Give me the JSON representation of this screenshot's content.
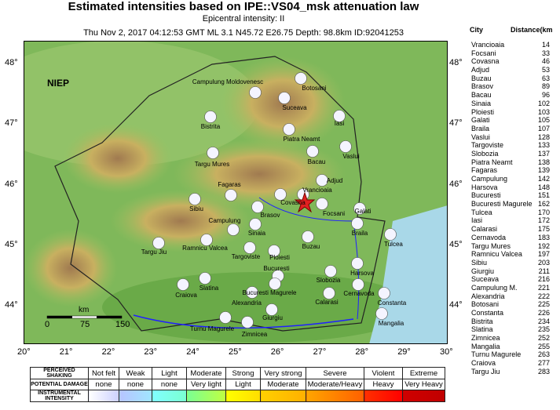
{
  "header": {
    "title": "Estimated intensities based on IPE::VS04_msk attenuation law",
    "epicentral": "Epicentral intensity: II",
    "event": "Thu Nov  2, 2017 04:12:53 GMT ML 3.1 N45.72 E26.75 Depth: 98.8km ID:92041253"
  },
  "map": {
    "org_label": "NIEP",
    "lon_ticks": [
      "20°",
      "21°",
      "22°",
      "23°",
      "24°",
      "25°",
      "26°",
      "27°",
      "28°",
      "29°",
      "30°"
    ],
    "lat_ticks": [
      "48°",
      "47°",
      "46°",
      "45°",
      "44°"
    ],
    "scale": {
      "unit": "km",
      "labels": [
        "0",
        "75",
        "150"
      ]
    },
    "epicenter": {
      "lat": 45.72,
      "lon": 26.75
    },
    "cities": [
      "Campulung Moldovenesc",
      "Botosani",
      "Suceava",
      "Iasi",
      "Bistrita",
      "Piatra Neamt",
      "Vaslui",
      "Bacau",
      "Targu Mures",
      "Adjud",
      "Fagaras",
      "Covasna",
      "Vrancioaia",
      "Sibiu",
      "Brasov",
      "Focsani",
      "Galati",
      "Campulung",
      "Sinaia",
      "Braila",
      "Tulcea",
      "Targu Jiu",
      "Ramnicu Valcea",
      "Targoviste",
      "Ploiesti",
      "Buzau",
      "Harsova",
      "Slobozia",
      "Bucuresti",
      "Bucuresti Magurele",
      "Craiova",
      "Slatina",
      "Alexandria",
      "Cernavoda",
      "Calarasi",
      "Constanta",
      "Giurgiu",
      "Turnu Magurele",
      "Zimnicea",
      "Mangalia"
    ]
  },
  "table": {
    "headers": [
      "City",
      "Distance(km"
    ],
    "rows": [
      [
        "Vrancioaia",
        "14"
      ],
      [
        "Focsani",
        "33"
      ],
      [
        "Covasna",
        "46"
      ],
      [
        "Adjud",
        "53"
      ],
      [
        "Buzau",
        "63"
      ],
      [
        "Brasov",
        "89"
      ],
      [
        "Bacau",
        "96"
      ],
      [
        "Sinaia",
        "102"
      ],
      [
        "Ploiesti",
        "103"
      ],
      [
        "Galati",
        "105"
      ],
      [
        "Braila",
        "107"
      ],
      [
        "Vaslui",
        "128"
      ],
      [
        "Targoviste",
        "133"
      ],
      [
        "Slobozia",
        "137"
      ],
      [
        "Piatra Neamt",
        "138"
      ],
      [
        "Fagaras",
        "139"
      ],
      [
        "Campulung",
        "142"
      ],
      [
        "Harsova",
        "148"
      ],
      [
        "Bucuresti",
        "151"
      ],
      [
        "Bucuresti Magurele",
        "162"
      ],
      [
        "Tulcea",
        "170"
      ],
      [
        "Iasi",
        "172"
      ],
      [
        "Calarasi",
        "175"
      ],
      [
        "Cernavoda",
        "183"
      ],
      [
        "Targu Mures",
        "192"
      ],
      [
        "Ramnicu Valcea",
        "197"
      ],
      [
        "Sibiu",
        "203"
      ],
      [
        "Giurgiu",
        "211"
      ],
      [
        "Suceava",
        "216"
      ],
      [
        "Campulung M.",
        "221"
      ],
      [
        "Alexandria",
        "222"
      ],
      [
        "Botosani",
        "225"
      ],
      [
        "Constanta",
        "226"
      ],
      [
        "Bistrita",
        "234"
      ],
      [
        "Slatina",
        "235"
      ],
      [
        "Zimnicea",
        "252"
      ],
      [
        "Mangalia",
        "255"
      ],
      [
        "Turnu Magurele",
        "263"
      ],
      [
        "Craiova",
        "277"
      ],
      [
        "Targu Jiu",
        "283"
      ]
    ]
  },
  "legend": {
    "row_labels": [
      "PERCEIVED SHAKING",
      "POTENTIAL DAMAGE",
      "INSTRUMENTAL INTENSITY"
    ],
    "shaking": [
      "Not felt",
      "Weak",
      "Light",
      "Moderate",
      "Strong",
      "Very strong",
      "Severe",
      "Violent",
      "Extreme"
    ],
    "damage": [
      "none",
      "none",
      "none",
      "Very light",
      "Light",
      "Moderate",
      "Moderate/Heavy",
      "Heavy",
      "Very Heavy"
    ],
    "colors": [
      [
        "#ffffff",
        "#ccd0ff"
      ],
      [
        "#b7c4ff",
        "#a0e6ff"
      ],
      [
        "#80ffff",
        "#7affd0"
      ],
      [
        "#7aff93",
        "#c0ff40"
      ],
      [
        "#ffff00",
        "#ffdd00"
      ],
      [
        "#ffd000",
        "#ffb000"
      ],
      [
        "#ffa500",
        "#ff6000"
      ],
      [
        "#ff3000",
        "#ff0000"
      ],
      [
        "#d00000",
        "#c00000"
      ]
    ]
  }
}
